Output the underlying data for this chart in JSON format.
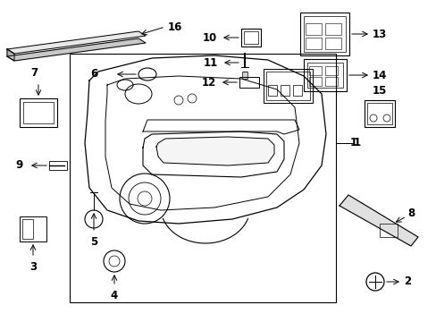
{
  "background_color": "#ffffff",
  "line_color": "#000000",
  "fig_width": 4.89,
  "fig_height": 3.6,
  "dpi": 100,
  "font_size": 8.5
}
